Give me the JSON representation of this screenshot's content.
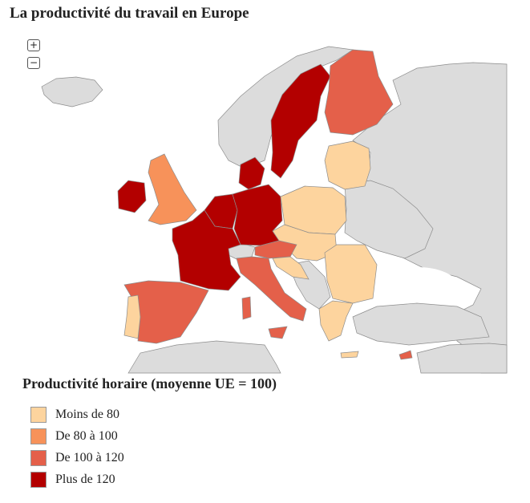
{
  "header": {
    "title": "La productivité du travail en Europe"
  },
  "zoom": {
    "in": "+",
    "out": "−"
  },
  "legend": {
    "title": "Productivité horaire (moyenne UE = 100)",
    "items": [
      {
        "label": "Moins de 80",
        "color": "#fdd49e"
      },
      {
        "label": "De 80 à 100",
        "color": "#f7925a"
      },
      {
        "label": "De 100 à 120",
        "color": "#e4604a"
      },
      {
        "label": "Plus de 120",
        "color": "#b30000"
      }
    ]
  }
}
